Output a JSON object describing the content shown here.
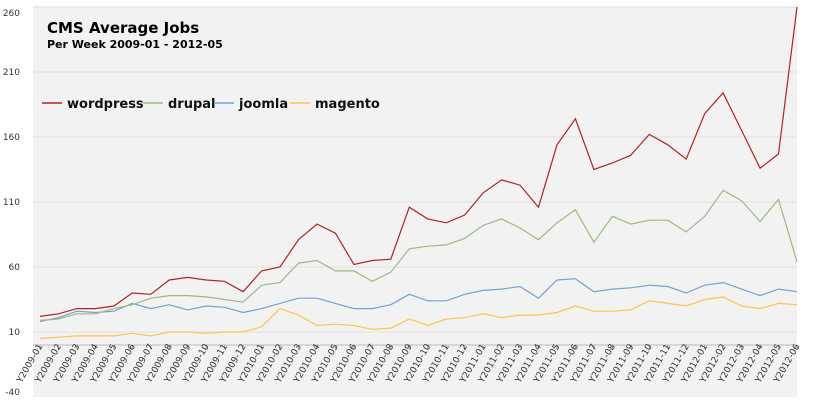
{
  "chart_data": {
    "type": "line",
    "title": "CMS Average Jobs",
    "subtitle": "Per Week 2009-01 - 2012-05",
    "xlabel": "",
    "ylabel": "",
    "ylim": [
      -40,
      260
    ],
    "yticks": [
      -40,
      10,
      60,
      110,
      160,
      210,
      260
    ],
    "grid": true,
    "legend_position": "top-left",
    "categories": [
      "Y2009-01",
      "Y2009-02",
      "Y2009-03",
      "Y2009-04",
      "Y2009-05",
      "Y2009-06",
      "Y2009-07",
      "Y2009-08",
      "Y2009-09",
      "Y2009-10",
      "Y2009-11",
      "Y2009-12",
      "Y2010-01",
      "Y2010-02",
      "Y2010-03",
      "Y2010-04",
      "Y2010-05",
      "Y2010-06",
      "Y2010-07",
      "Y2010-08",
      "Y2010-09",
      "Y2010-10",
      "Y2010-11",
      "Y2010-12",
      "Y2011-01",
      "Y2011-02",
      "Y2011-03",
      "Y2011-04",
      "Y2011-05",
      "Y2011-06",
      "Y2011-07",
      "Y2011-08",
      "Y2011-09",
      "Y2011-10",
      "Y2011-11",
      "Y2011-12",
      "Y2012-01",
      "Y2012-02",
      "Y2012-03",
      "Y2012-04",
      "Y2012-05",
      "Y2012-06"
    ],
    "series": [
      {
        "name": "wordpress",
        "color": "#b22222",
        "values": [
          22,
          24,
          28,
          28,
          30,
          40,
          39,
          50,
          52,
          50,
          49,
          41,
          57,
          60,
          81,
          93,
          86,
          62,
          65,
          66,
          106,
          97,
          94,
          100,
          117,
          127,
          123,
          106,
          154,
          174,
          135,
          140,
          146,
          162,
          154,
          143,
          178,
          194,
          165,
          136,
          147,
          260
        ]
      },
      {
        "name": "drupal",
        "color": "#9bb98a",
        "values": [
          19,
          20,
          24,
          24,
          28,
          31,
          36,
          38,
          38,
          37,
          35,
          33,
          46,
          48,
          63,
          65,
          57,
          57,
          49,
          56,
          74,
          76,
          77,
          82,
          92,
          97,
          90,
          81,
          94,
          104,
          79,
          99,
          93,
          96,
          96,
          87,
          99,
          119,
          111,
          95,
          112,
          64
        ]
      },
      {
        "name": "joomla",
        "color": "#7a9fcf",
        "values": [
          18,
          21,
          26,
          25,
          26,
          32,
          28,
          31,
          27,
          30,
          29,
          25,
          28,
          32,
          36,
          36,
          32,
          28,
          28,
          31,
          39,
          34,
          34,
          39,
          42,
          43,
          45,
          36,
          50,
          51,
          41,
          43,
          44,
          46,
          45,
          40,
          46,
          48,
          43,
          38,
          43,
          41
        ]
      },
      {
        "name": "magento",
        "color": "#ffc34d",
        "values": [
          5,
          6,
          7,
          7,
          7,
          9,
          7,
          10,
          10,
          9,
          10,
          10,
          14,
          28,
          23,
          15,
          16,
          15,
          12,
          13,
          20,
          15,
          20,
          21,
          24,
          21,
          23,
          23,
          25,
          30,
          26,
          26,
          27,
          34,
          32,
          30,
          35,
          37,
          30,
          28,
          32,
          31
        ]
      }
    ]
  }
}
